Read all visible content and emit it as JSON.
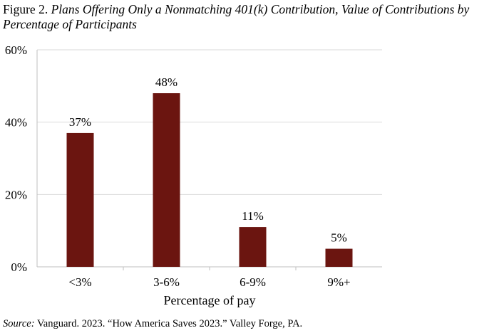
{
  "figure": {
    "prefix": "Figure 2.",
    "title": "Plans Offering Only a Nonmatching 401(k) Contribution, Value of Contributions by Percentage of Participants"
  },
  "source": {
    "label": "Source:",
    "text": "Vanguard. 2023. “How America Saves 2023.” Valley Forge, PA."
  },
  "colors": {
    "bar": "#6b1510",
    "axis": "#bfbfbf",
    "grid": "#d9d9d9"
  },
  "chart_data": {
    "type": "bar",
    "title": "Plans Offering Only a Nonmatching 401(k) Contribution, Value of Contributions by Percentage of Participants",
    "categories": [
      "<3%",
      "3-6%",
      "6-9%",
      "9%+"
    ],
    "values": [
      37,
      48,
      11,
      5
    ],
    "data_labels": [
      "37%",
      "48%",
      "11%",
      "5%"
    ],
    "xlabel": "Percentage of pay",
    "ylabel": "",
    "ylim": [
      0,
      60
    ],
    "yticks": [
      0,
      20,
      40,
      60
    ],
    "ytick_labels": [
      "0%",
      "20%",
      "40%",
      "60%"
    ],
    "grid": true,
    "legend": "none"
  }
}
